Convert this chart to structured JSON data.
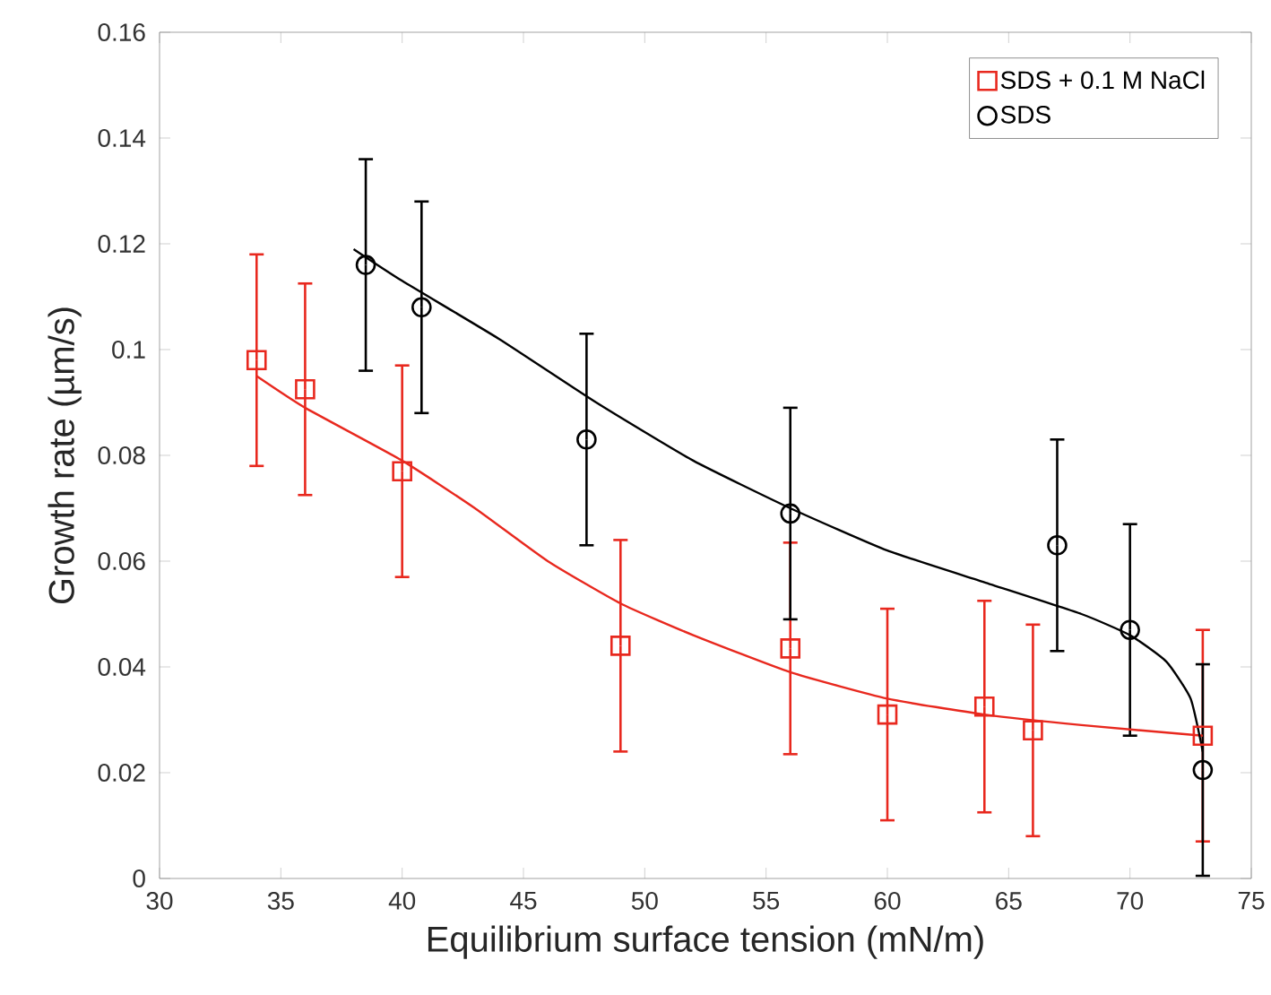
{
  "chart_data": {
    "type": "scatter",
    "xlabel": "Equilibrium surface tension (mN/m)",
    "ylabel": "Growth rate (µm/s)",
    "xlim": [
      30,
      75
    ],
    "xticks": [
      30,
      35,
      40,
      45,
      50,
      55,
      60,
      65,
      70,
      75
    ],
    "ylim": [
      0,
      0.16
    ],
    "yticks": [
      0,
      0.02,
      0.04,
      0.06,
      0.08,
      0.1,
      0.12,
      0.14,
      0.16
    ],
    "grid": false,
    "legend": "top right",
    "series": [
      {
        "name": "SDS + 0.1 M NaCl",
        "marker": "square",
        "color": "#e8281e",
        "x": [
          34,
          36,
          40,
          49,
          56,
          60,
          64,
          66,
          73
        ],
        "values": [
          0.098,
          0.0925,
          0.077,
          0.044,
          0.0435,
          0.031,
          0.0325,
          0.028,
          0.027
        ],
        "errors": [
          0.02,
          0.02,
          0.02,
          0.02,
          0.02,
          0.02,
          0.02,
          0.02,
          0.02
        ]
      },
      {
        "name": "SDS",
        "marker": "circle",
        "color": "#000000",
        "x": [
          38.5,
          40.8,
          47.6,
          56,
          67,
          70,
          73
        ],
        "values": [
          0.116,
          0.108,
          0.083,
          0.069,
          0.063,
          0.047,
          0.0205
        ],
        "errors": [
          0.02,
          0.02,
          0.02,
          0.02,
          0.02,
          0.02,
          0.02
        ]
      },
      {
        "type": "line",
        "marker": "none",
        "line_style": "solid",
        "color": "#e8281e",
        "x": [
          34,
          36,
          40,
          43,
          46,
          49,
          52,
          56,
          60,
          64,
          68,
          73
        ],
        "values": [
          0.095,
          0.089,
          0.079,
          0.07,
          0.06,
          0.052,
          0.046,
          0.039,
          0.034,
          0.031,
          0.029,
          0.027
        ]
      },
      {
        "type": "line",
        "marker": "none",
        "line_style": "solid",
        "color": "#000000",
        "x": [
          38,
          40,
          44,
          48,
          52,
          56,
          60,
          64,
          68,
          70,
          71.5,
          72.5,
          73
        ],
        "values": [
          0.119,
          0.113,
          0.102,
          0.09,
          0.079,
          0.07,
          0.062,
          0.056,
          0.05,
          0.046,
          0.041,
          0.034,
          0.024
        ]
      }
    ]
  }
}
